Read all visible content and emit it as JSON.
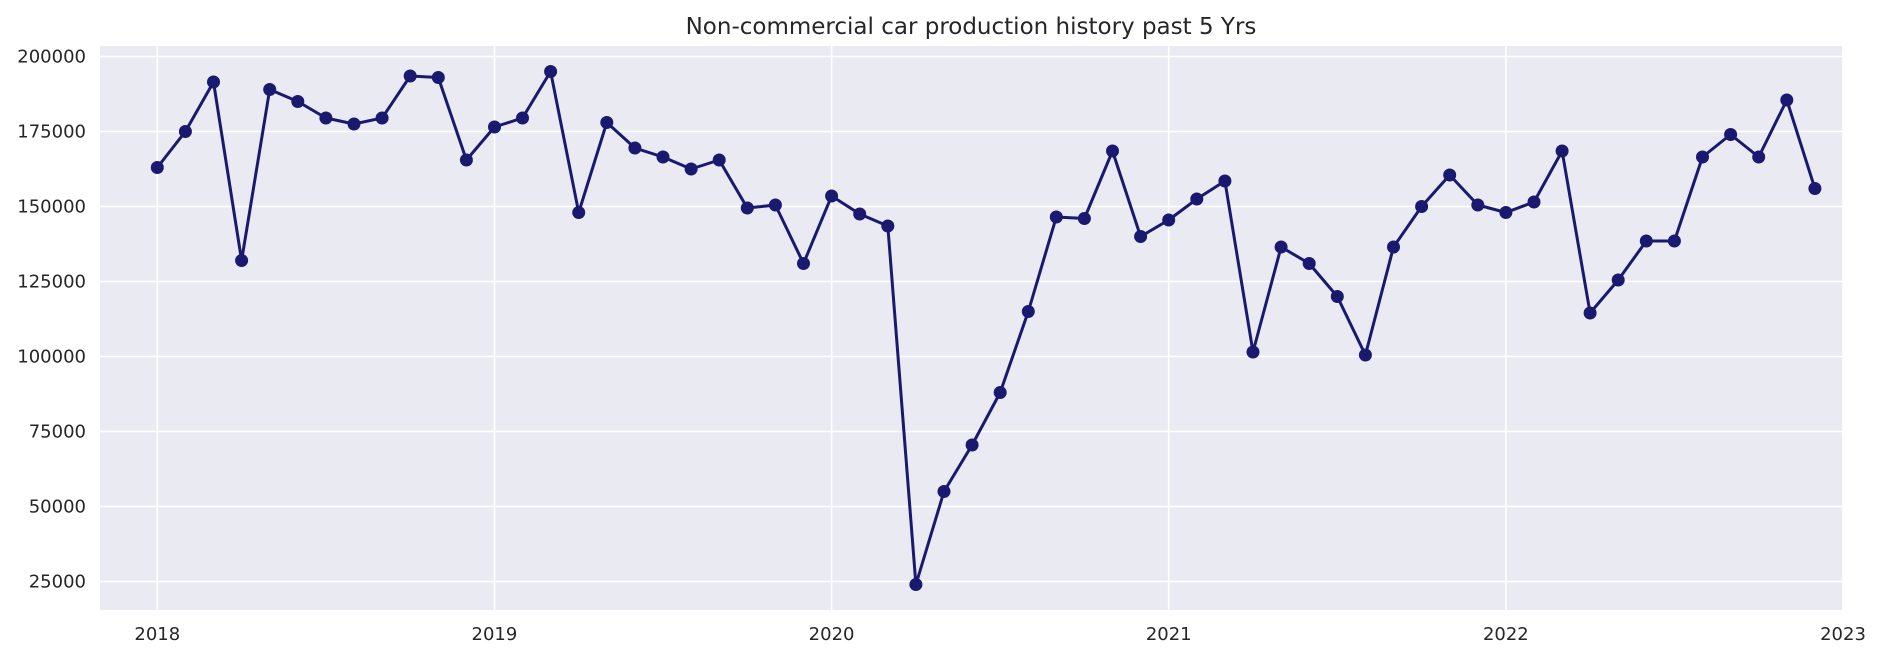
{
  "chart_data": {
    "type": "line",
    "title": "Non-commercial car production history past 5 Yrs",
    "xlabel": "",
    "ylabel": "",
    "grid": true,
    "colors": {
      "background": "#eaeaf2",
      "grid": "#ffffff",
      "line": "#191970",
      "text": "#262626"
    },
    "xlim": [
      2017.83,
      2023.0
    ],
    "ylim": [
      15500,
      203500
    ],
    "x_ticks": [
      2018,
      2019,
      2020,
      2021,
      2022,
      2023
    ],
    "x_tick_labels": [
      "2018",
      "2019",
      "2020",
      "2021",
      "2022",
      "2023"
    ],
    "y_ticks": [
      25000,
      50000,
      75000,
      100000,
      125000,
      150000,
      175000,
      200000
    ],
    "y_tick_labels": [
      "25000",
      "50000",
      "75000",
      "100000",
      "125000",
      "150000",
      "175000",
      "200000"
    ],
    "series": [
      {
        "name": "Non-commercial car production",
        "start_year": 2018,
        "step_months": 1,
        "values": [
          163000,
          175000,
          191500,
          132000,
          189000,
          185000,
          179500,
          177500,
          179500,
          193500,
          193000,
          165500,
          176500,
          179500,
          195000,
          148000,
          178000,
          169500,
          166500,
          162500,
          165500,
          149500,
          150500,
          131000,
          153500,
          147500,
          143500,
          24000,
          55000,
          70500,
          88000,
          115000,
          146500,
          146000,
          168500,
          140000,
          145500,
          152500,
          158500,
          101500,
          136500,
          131000,
          120000,
          100500,
          136500,
          150000,
          160500,
          150500,
          148000,
          151500,
          168500,
          114500,
          125500,
          138500,
          138500,
          166500,
          174000,
          166500,
          185500,
          156000
        ]
      }
    ]
  }
}
